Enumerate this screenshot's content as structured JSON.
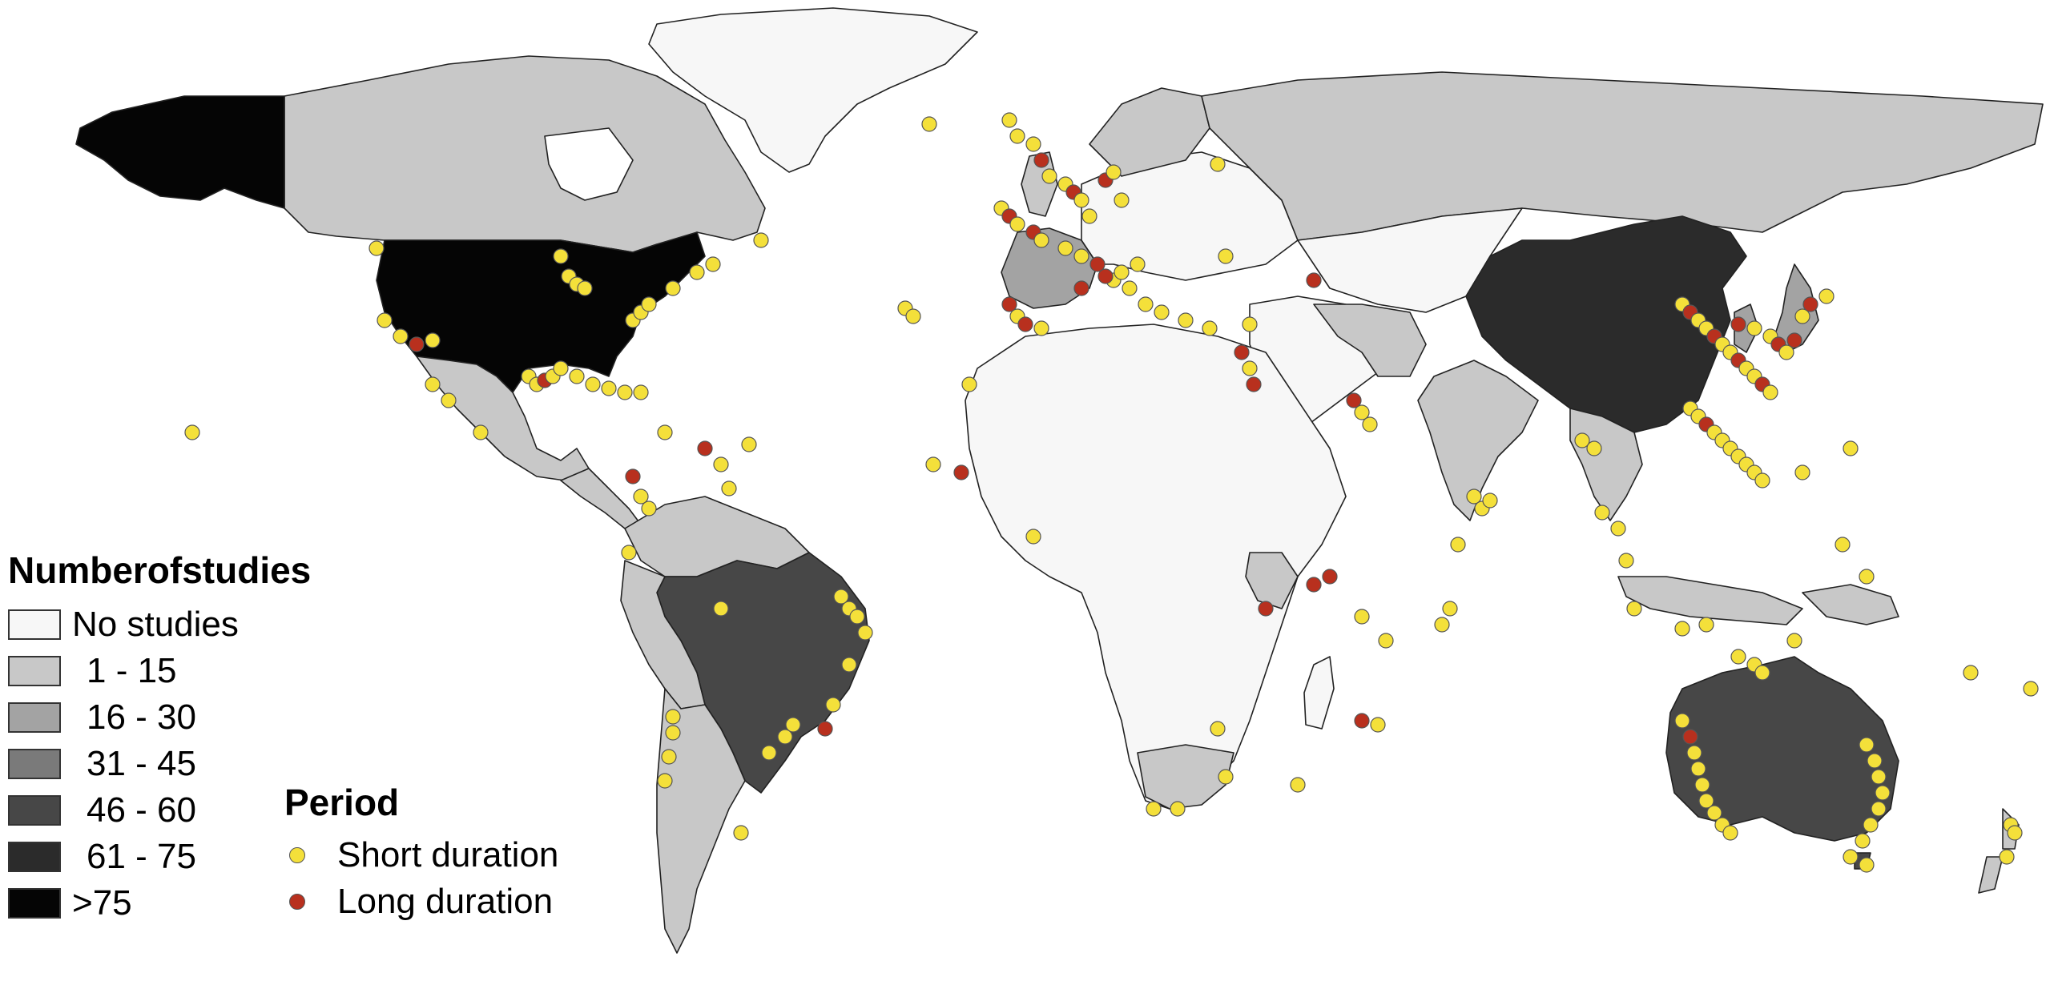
{
  "legend": {
    "title": "Numberofstudies",
    "classes": [
      {
        "label": "No studies",
        "color": "#f7f7f7"
      },
      {
        "label": "1 - 15",
        "color": "#c8c8c8"
      },
      {
        "label": "16 - 30",
        "color": "#a3a3a3"
      },
      {
        "label": "31 - 45",
        "color": "#7a7a7a"
      },
      {
        "label": "46 - 60",
        "color": "#474747"
      },
      {
        "label": "61 - 75",
        "color": "#2b2b2b"
      },
      {
        "label": ">75",
        "color": "#050505"
      }
    ]
  },
  "period": {
    "title": "Period",
    "items": [
      {
        "label": "Short duration",
        "color": "#f4e03a"
      },
      {
        "label": "Long duration",
        "color": "#b8301e"
      }
    ]
  }
}
